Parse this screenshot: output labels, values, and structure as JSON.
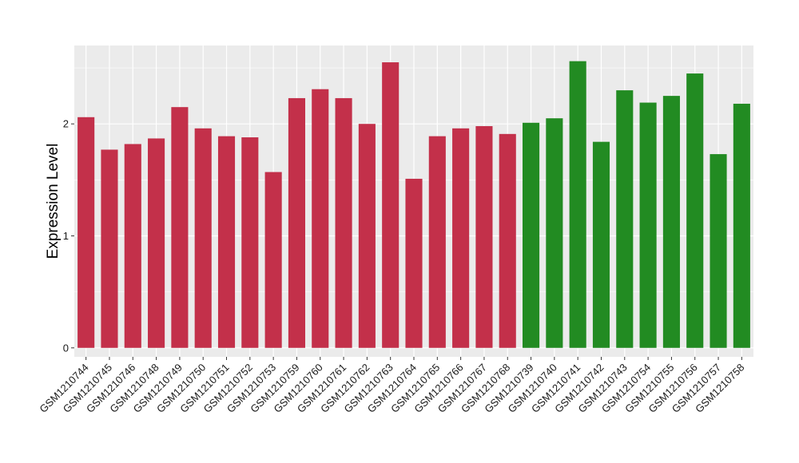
{
  "chart_data": {
    "type": "bar",
    "title": "",
    "xlabel": "",
    "ylabel": "Expression Level",
    "ylim": [
      -0.08,
      2.7
    ],
    "yticks": [
      0,
      1,
      2
    ],
    "grid": true,
    "panel_background": "#ebebeb",
    "grid_color": "#ffffff",
    "categories": [
      "GSM1210744",
      "GSM1210745",
      "GSM1210746",
      "GSM1210748",
      "GSM1210749",
      "GSM1210750",
      "GSM1210751",
      "GSM1210752",
      "GSM1210753",
      "GSM1210759",
      "GSM1210760",
      "GSM1210761",
      "GSM1210762",
      "GSM1210763",
      "GSM1210764",
      "GSM1210765",
      "GSM1210766",
      "GSM1210767",
      "GSM1210768",
      "GSM1210739",
      "GSM1210740",
      "GSM1210741",
      "GSM1210742",
      "GSM1210743",
      "GSM1210754",
      "GSM1210755",
      "GSM1210756",
      "GSM1210757",
      "GSM1210758"
    ],
    "values": [
      2.06,
      1.77,
      1.82,
      1.87,
      2.15,
      1.96,
      1.89,
      1.88,
      1.57,
      2.23,
      2.31,
      2.23,
      2.0,
      2.55,
      1.51,
      1.89,
      1.96,
      1.98,
      1.91,
      2.01,
      2.05,
      2.56,
      1.84,
      2.3,
      2.19,
      2.25,
      2.45,
      1.73,
      2.18
    ],
    "groups": [
      0,
      0,
      0,
      0,
      0,
      0,
      0,
      0,
      0,
      0,
      0,
      0,
      0,
      0,
      0,
      0,
      0,
      0,
      0,
      1,
      1,
      1,
      1,
      1,
      1,
      1,
      1,
      1,
      1
    ],
    "group_colors": [
      "#c3304a",
      "#228b22"
    ]
  }
}
